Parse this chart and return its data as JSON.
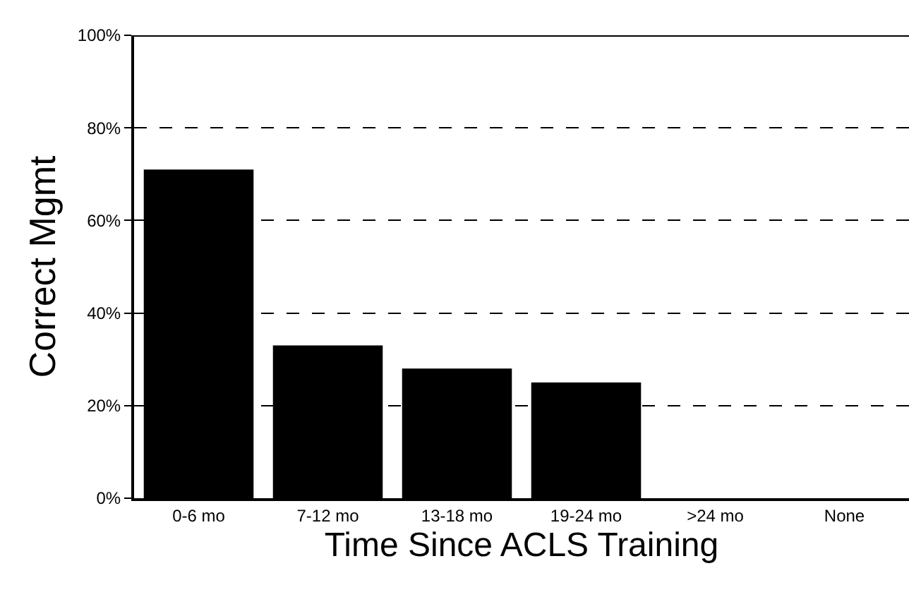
{
  "chart_data": {
    "type": "bar",
    "xlabel": "Time Since ACLS Training",
    "ylabel": "Correct Mgmt",
    "categories": [
      "0-6 mo",
      "7-12 mo",
      "13-18 mo",
      "19-24 mo",
      ">24 mo",
      "None"
    ],
    "values": [
      71,
      33,
      28,
      25,
      0,
      0
    ],
    "color": "#000000",
    "ylim": [
      0,
      100
    ],
    "yticks": [
      {
        "value": 0,
        "label": "0%"
      },
      {
        "value": 20,
        "label": "20%"
      },
      {
        "value": 40,
        "label": "40%"
      },
      {
        "value": 60,
        "label": "60%"
      },
      {
        "value": 80,
        "label": "80%"
      },
      {
        "value": 100,
        "label": "100%"
      }
    ],
    "grid": "y",
    "line_style": "dashed"
  }
}
